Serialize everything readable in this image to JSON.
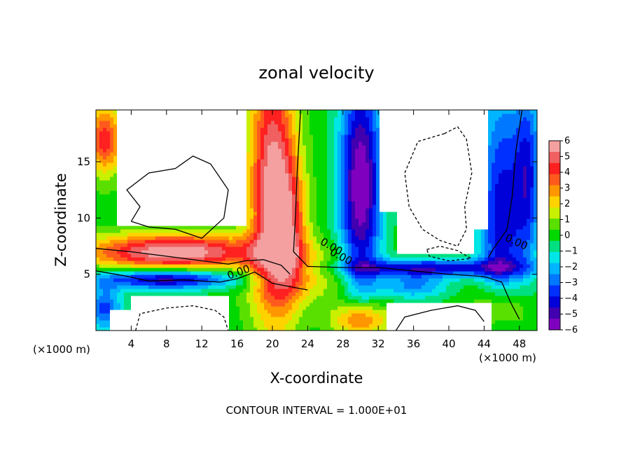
{
  "chart_data": {
    "type": "heatmap",
    "title": "zonal velocity",
    "xlabel": "X-coordinate",
    "ylabel": "Z-coordinate",
    "x_unit_left": "(×1000 m)",
    "x_unit_right": "(×1000 m)",
    "xlim": [
      0,
      50
    ],
    "ylim": [
      0,
      19.6
    ],
    "x_ticks": [
      4,
      8,
      12,
      16,
      20,
      24,
      28,
      32,
      36,
      40,
      44,
      48
    ],
    "y_ticks": [
      5,
      10,
      15
    ],
    "footer": "CONTOUR INTERVAL = 1.000E+01",
    "contour_labels": [
      "0.00",
      "0.00",
      "0.00",
      "0.00"
    ],
    "colorbar": {
      "labels": [
        "6",
        "5",
        "4",
        "3",
        "2",
        "1",
        "0",
        "−1",
        "−2",
        "−3",
        "−4",
        "−5",
        "−6"
      ],
      "colors": [
        "#f4a0a0",
        "#f06060",
        "#ff2020",
        "#ff5a1e",
        "#ff9600",
        "#ffd200",
        "#c8f000",
        "#5ae000",
        "#00d800",
        "#00e080",
        "#00e6e6",
        "#00b4ff",
        "#0078ff",
        "#0030ff",
        "#0000d8",
        "#4000b0",
        "#8000c0"
      ]
    },
    "fields": {
      "white_regions_note_removed": true,
      "value_grid_x": [
        0,
        2,
        4,
        6,
        8,
        10,
        12,
        14,
        16,
        18,
        20,
        22,
        24,
        26,
        28,
        30,
        32,
        34,
        36,
        38,
        40,
        42,
        44,
        46,
        48,
        50
      ],
      "value_grid_z": [
        0,
        1,
        2,
        3,
        4,
        5,
        6,
        7,
        8,
        9,
        10,
        11,
        12,
        13,
        14,
        15,
        16,
        17,
        18,
        19.6
      ]
    }
  }
}
